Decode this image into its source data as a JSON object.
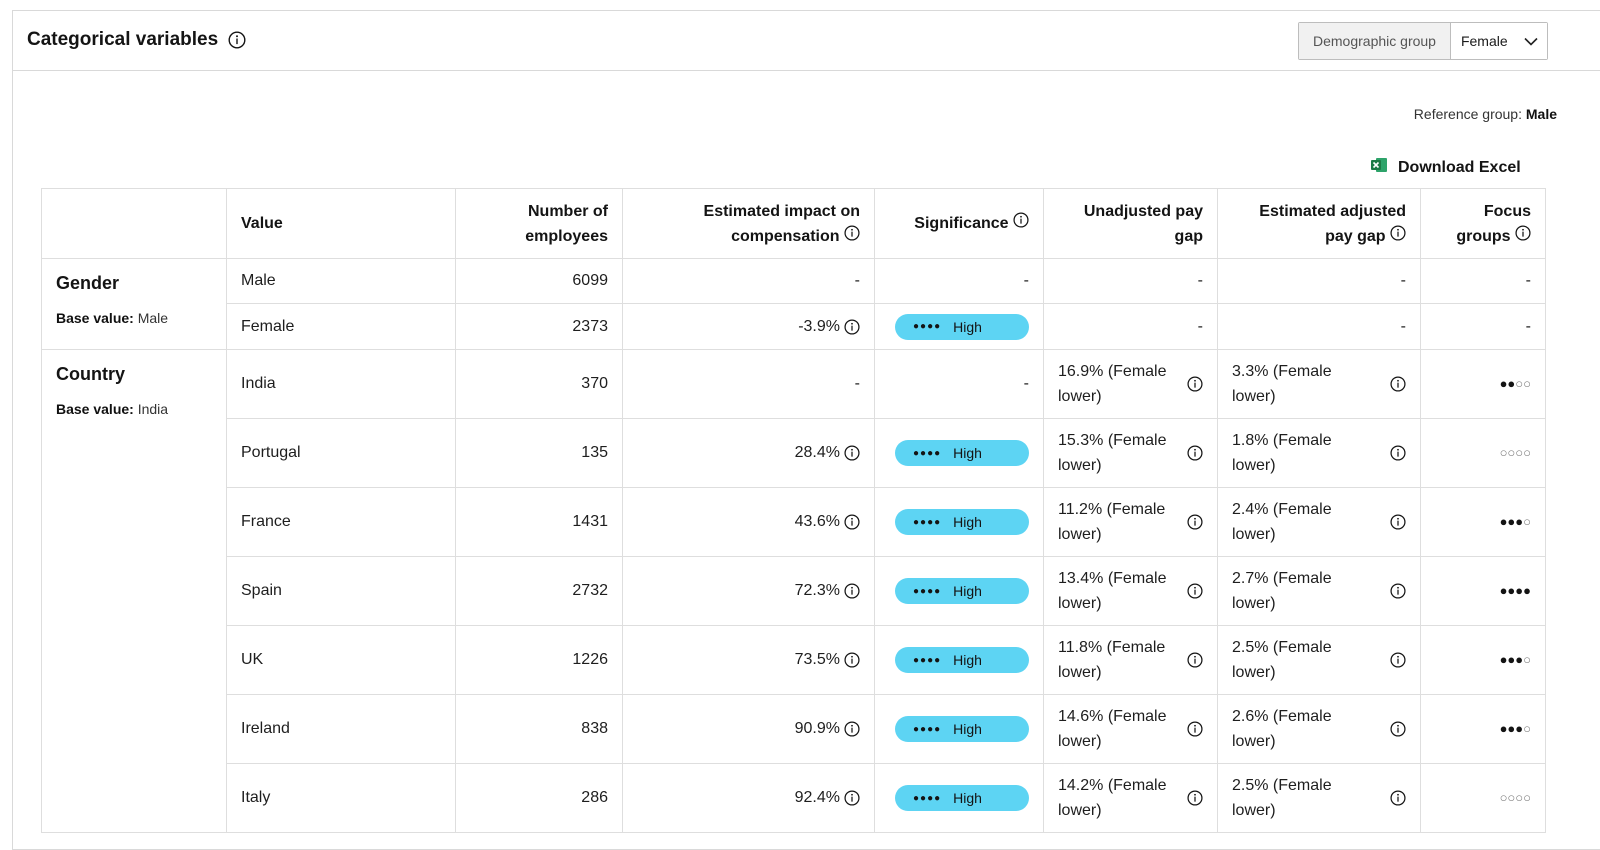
{
  "header": {
    "title": "Categorical variables",
    "demographic_label": "Demographic group",
    "demographic_value": "Female"
  },
  "reference": {
    "label": "Reference group:",
    "value": "Male"
  },
  "download": {
    "label": "Download Excel"
  },
  "table": {
    "columns": [
      "Value",
      "Number of employees",
      "Estimated impact on compensation",
      "Significance",
      "Unadjusted pay gap",
      "Estimated adjusted pay gap",
      "Focus groups"
    ],
    "groups": [
      {
        "name": "Gender",
        "base_label": "Base value:",
        "base_value": "Male",
        "rows": [
          {
            "value": "Male",
            "employees": "6099",
            "impact": "-",
            "significance": "-",
            "unadjusted": "-",
            "adjusted": "-",
            "focus": "-"
          },
          {
            "value": "Female",
            "employees": "2373",
            "impact": "-3.9%",
            "significance": "High",
            "unadjusted": "-",
            "adjusted": "-",
            "focus": "-"
          }
        ]
      },
      {
        "name": "Country",
        "base_label": "Base value:",
        "base_value": "India",
        "rows": [
          {
            "value": "India",
            "employees": "370",
            "impact": "-",
            "significance": "-",
            "unadjusted": "16.9% (Female lower)",
            "adjusted": "3.3% (Female lower)",
            "focus": 2
          },
          {
            "value": "Portugal",
            "employees": "135",
            "impact": "28.4%",
            "significance": "High",
            "unadjusted": "15.3% (Female lower)",
            "adjusted": "1.8% (Female lower)",
            "focus": 0
          },
          {
            "value": "France",
            "employees": "1431",
            "impact": "43.6%",
            "significance": "High",
            "unadjusted": "11.2% (Female lower)",
            "adjusted": "2.4% (Female lower)",
            "focus": 3
          },
          {
            "value": "Spain",
            "employees": "2732",
            "impact": "72.3%",
            "significance": "High",
            "unadjusted": "13.4% (Female lower)",
            "adjusted": "2.7% (Female lower)",
            "focus": 4
          },
          {
            "value": "UK",
            "employees": "1226",
            "impact": "73.5%",
            "significance": "High",
            "unadjusted": "11.8% (Female lower)",
            "adjusted": "2.5% (Female lower)",
            "focus": 3
          },
          {
            "value": "Ireland",
            "employees": "838",
            "impact": "90.9%",
            "significance": "High",
            "unadjusted": "14.6% (Female lower)",
            "adjusted": "2.6% (Female lower)",
            "focus": 3
          },
          {
            "value": "Italy",
            "employees": "286",
            "impact": "92.4%",
            "significance": "High",
            "unadjusted": "14.2% (Female lower)",
            "adjusted": "2.5% (Female lower)",
            "focus": 0
          }
        ]
      }
    ]
  },
  "colors": {
    "badge": "#5dd4f3",
    "excel_green": "#1d7a45"
  },
  "icons": {
    "info": "info-circle-icon",
    "chevron": "chevron-down-icon",
    "excel": "excel-icon"
  }
}
